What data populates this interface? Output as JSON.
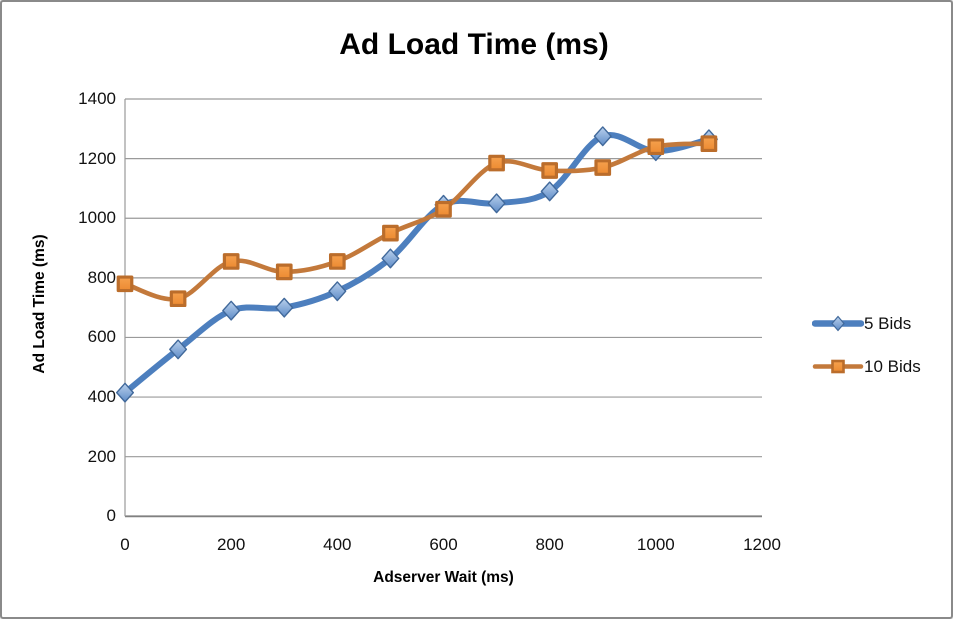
{
  "chart_data": {
    "type": "line",
    "title": "Ad Load Time (ms)",
    "xlabel": "Adserver Wait (ms)",
    "ylabel": "Ad Load Time (ms)",
    "xlim": [
      0,
      1200
    ],
    "ylim": [
      0,
      1400
    ],
    "x_ticks": [
      0,
      200,
      400,
      600,
      800,
      1000,
      1200
    ],
    "y_ticks": [
      0,
      200,
      400,
      600,
      800,
      1000,
      1200,
      1400
    ],
    "grid": "horizontal",
    "legend_position": "right",
    "smoothed_lines": true,
    "x": [
      0,
      100,
      200,
      300,
      400,
      500,
      600,
      700,
      800,
      900,
      1000,
      1100
    ],
    "series": [
      {
        "name": "5 Bids",
        "marker": "diamond",
        "values": [
          415,
          560,
          690,
          700,
          755,
          865,
          1045,
          1050,
          1090,
          1275,
          1225,
          1265
        ],
        "line_color": "#4D7FBE",
        "marker_fill_light": "#BAD1ED",
        "marker_fill_dark": "#5F8CC7",
        "marker_stroke": "#41699B"
      },
      {
        "name": "10 Bids",
        "marker": "square",
        "values": [
          780,
          730,
          855,
          820,
          855,
          950,
          1030,
          1185,
          1160,
          1170,
          1240,
          1250
        ],
        "line_color": "#C3793B",
        "marker_fill_light": "#F6A14E",
        "marker_fill_dark": "#EC8A31",
        "marker_stroke": "#BB6D2B"
      }
    ],
    "colors": {
      "background": "#FFFFFF",
      "gridline": "#9A9A9A",
      "axis": "#808080",
      "text": "#000000",
      "border": "#8A8A8A"
    }
  }
}
